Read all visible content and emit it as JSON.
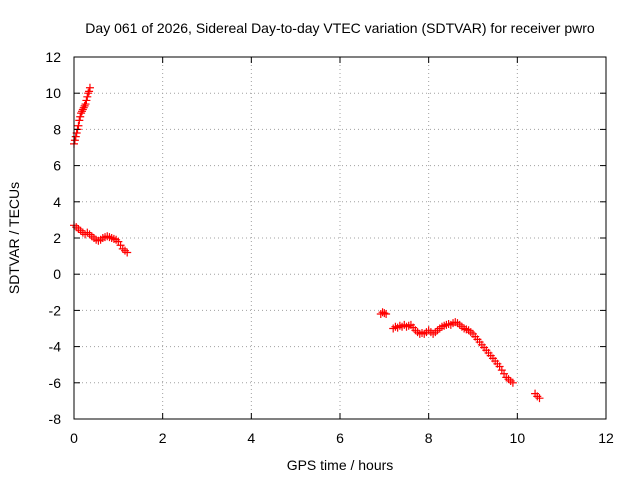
{
  "chart_data": {
    "type": "scatter",
    "title": "Day 061 of 2026, Sidereal Day-to-day VTEC variation (SDTVAR) for receiver pwro",
    "xlabel": "GPS time / hours",
    "ylabel": "SDTVAR / TECUs",
    "xlim": [
      0,
      12
    ],
    "ylim": [
      -8,
      12
    ],
    "xticks": [
      0,
      2,
      4,
      6,
      8,
      10,
      12
    ],
    "yticks": [
      -8,
      -6,
      -4,
      -2,
      0,
      2,
      4,
      6,
      8,
      10,
      12
    ],
    "grid": true,
    "marker": "plus",
    "series": [
      {
        "name": "pwro",
        "color": "#ff0000",
        "segments": [
          {
            "x": [
              0.0,
              0.02,
              0.04,
              0.06,
              0.08,
              0.1,
              0.12,
              0.14,
              0.16,
              0.18,
              0.2,
              0.22,
              0.24,
              0.26,
              0.28,
              0.3,
              0.32,
              0.34,
              0.36
            ],
            "y": [
              7.2,
              7.4,
              7.6,
              7.8,
              8.0,
              8.2,
              8.5,
              8.7,
              8.9,
              9.0,
              9.1,
              9.2,
              9.3,
              9.4,
              9.6,
              9.8,
              10.0,
              10.1,
              10.3
            ]
          },
          {
            "x": [
              0.0,
              0.05,
              0.1,
              0.15,
              0.2,
              0.25,
              0.3,
              0.35,
              0.4,
              0.45,
              0.5,
              0.55,
              0.6,
              0.65,
              0.7,
              0.75,
              0.8,
              0.85,
              0.9,
              0.95,
              1.0,
              1.05,
              1.1,
              1.15,
              1.2
            ],
            "y": [
              2.7,
              2.6,
              2.5,
              2.4,
              2.3,
              2.2,
              2.3,
              2.2,
              2.1,
              2.0,
              1.9,
              1.85,
              1.9,
              2.0,
              2.05,
              2.1,
              2.05,
              2.0,
              1.95,
              1.9,
              1.8,
              1.6,
              1.4,
              1.3,
              1.2
            ]
          },
          {
            "x": [
              6.92,
              6.96,
              7.0,
              7.04
            ],
            "y": [
              -2.2,
              -2.1,
              -2.15,
              -2.2
            ]
          },
          {
            "x": [
              7.2,
              7.25,
              7.3,
              7.35,
              7.4,
              7.45,
              7.5,
              7.55,
              7.6,
              7.65,
              7.7,
              7.75,
              7.8,
              7.85,
              7.9,
              7.95,
              8.0,
              8.05,
              8.1,
              8.15,
              8.2,
              8.25,
              8.3,
              8.35,
              8.4,
              8.45,
              8.5,
              8.55,
              8.6,
              8.65,
              8.7,
              8.75,
              8.8,
              8.85,
              8.9,
              8.95,
              9.0,
              9.05,
              9.1,
              9.15,
              9.2,
              9.25,
              9.3,
              9.35,
              9.4,
              9.45,
              9.5,
              9.55,
              9.6,
              9.65,
              9.7,
              9.75,
              9.8,
              9.85,
              9.9
            ],
            "y": [
              -3.0,
              -2.9,
              -2.95,
              -2.85,
              -2.9,
              -2.8,
              -2.9,
              -2.85,
              -2.8,
              -2.95,
              -3.1,
              -3.2,
              -3.3,
              -3.25,
              -3.3,
              -3.2,
              -3.1,
              -3.2,
              -3.3,
              -3.2,
              -3.1,
              -3.0,
              -2.9,
              -2.85,
              -2.8,
              -2.75,
              -2.8,
              -2.7,
              -2.65,
              -2.7,
              -2.8,
              -2.9,
              -3.0,
              -3.05,
              -3.1,
              -3.2,
              -3.3,
              -3.45,
              -3.6,
              -3.75,
              -3.9,
              -4.05,
              -4.2,
              -4.35,
              -4.5,
              -4.65,
              -4.8,
              -4.95,
              -5.1,
              -5.3,
              -5.5,
              -5.7,
              -5.8,
              -5.9,
              -6.0
            ]
          },
          {
            "x": [
              10.4,
              10.45,
              10.5
            ],
            "y": [
              -6.6,
              -6.75,
              -6.85
            ]
          }
        ]
      }
    ]
  }
}
